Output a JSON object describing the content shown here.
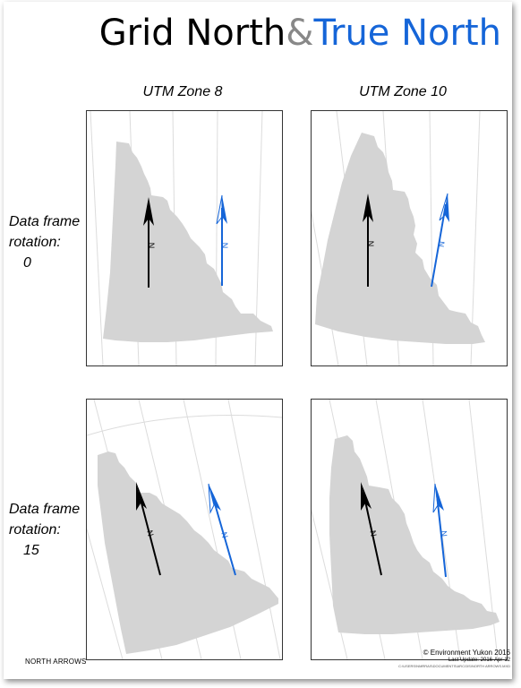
{
  "title": {
    "part1": "Grid North",
    "amp": "&",
    "part2": "True North"
  },
  "columns": [
    "UTM Zone 8",
    "UTM Zone 10"
  ],
  "rows": [
    {
      "label_line1": "Data frame",
      "label_line2": "rotation:",
      "value": "0"
    },
    {
      "label_line1": "Data frame",
      "label_line2": "rotation:",
      "value": "15"
    }
  ],
  "arrow_letter": "N",
  "colors": {
    "grid_arrow": "#000000",
    "true_arrow": "#1565d8",
    "territory": "#d4d4d4",
    "graticule": "#dcdcdc"
  },
  "footer": {
    "left": "NORTH ARROWS",
    "copyright": "© Environment Yukon 2016",
    "last_update": "Last Update: 2016-Apr-12",
    "path": "C:\\USERS\\NMRRAS\\DOCUMENTS\\ARCGIS\\NORTH ARROWS.MXD"
  }
}
